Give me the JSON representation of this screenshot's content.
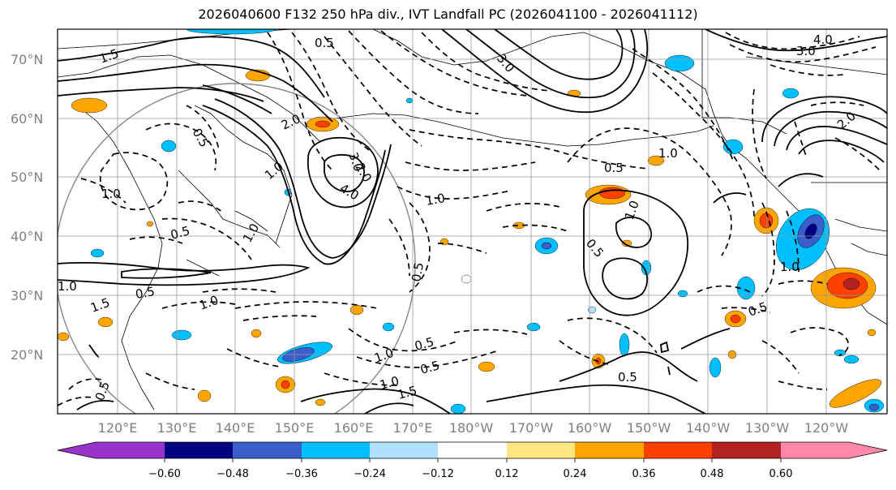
{
  "title": "2026040600 F132 250 hPa div., IVT Landfall PC (2026041100 - 2026041112)",
  "lat_labels": [
    "70°N",
    "60°N",
    "50°N",
    "40°N",
    "30°N",
    "20°N"
  ],
  "lon_labels": [
    "120°E",
    "130°E",
    "140°E",
    "150°E",
    "160°E",
    "170°E",
    "180°W",
    "170°W",
    "160°W",
    "150°W",
    "140°W",
    "130°W",
    "120°W"
  ],
  "colorbar": {
    "ticks": [
      "−0.60",
      "−0.48",
      "−0.36",
      "−0.24",
      "−0.12",
      "0.12",
      "0.24",
      "0.36",
      "0.48",
      "0.60"
    ],
    "colors": [
      "#9933cc",
      "#000080",
      "#3a5fcd",
      "#00bfff",
      "#b0e2ff",
      "#ffffff",
      "#ffe680",
      "#ffa500",
      "#ff4000",
      "#b22222",
      "#ff88aa"
    ]
  },
  "contour_labels": [
    "1.5",
    "0.5",
    "3.0",
    "4.0",
    "3.0",
    "2.0",
    "1.0",
    "0.5",
    "1.0",
    "2.0",
    "3.0",
    "4.0",
    "1.0",
    "0.5",
    "1.0",
    "0.5",
    "1.0",
    "0.5",
    "1.0",
    "1.5",
    "0.5",
    "1.0",
    "0.5",
    "1.0",
    "0.5",
    "1.0",
    "0.5",
    "0.5",
    "1.0",
    "0.5",
    "1.0",
    "1.5",
    "2.0",
    "0.5"
  ]
}
